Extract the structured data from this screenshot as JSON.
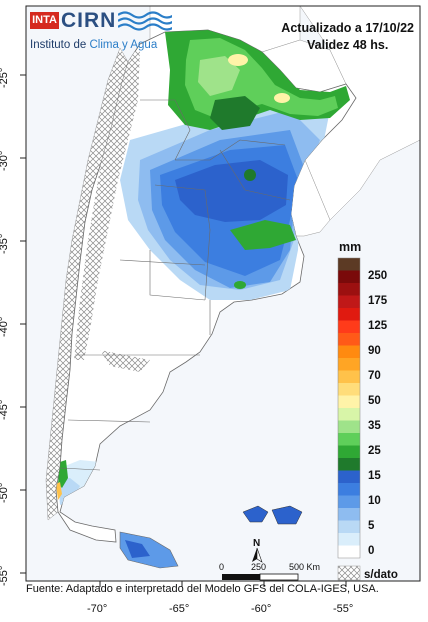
{
  "logo": {
    "inta": "INTA",
    "cirn": "CIRN",
    "institute_prefix": "Instituto de ",
    "institute_accent": "Clima y Agua"
  },
  "header": {
    "updated": "Actualizado a 17/10/22",
    "validity": "Validez 48 hs."
  },
  "legend": {
    "unit": "mm",
    "nodata_label": "s/dato",
    "classes": [
      {
        "label": "",
        "color": "#5c3a24"
      },
      {
        "label": "250",
        "color": "#7a0a0a"
      },
      {
        "label": "",
        "color": "#9c1010"
      },
      {
        "label": "175",
        "color": "#c01818"
      },
      {
        "label": "",
        "color": "#e01a10"
      },
      {
        "label": "125",
        "color": "#ff3b1a"
      },
      {
        "label": "",
        "color": "#ff5a18"
      },
      {
        "label": "90",
        "color": "#ff8a10"
      },
      {
        "label": "",
        "color": "#ffa524"
      },
      {
        "label": "70",
        "color": "#ffc24a"
      },
      {
        "label": "",
        "color": "#ffdd7a"
      },
      {
        "label": "50",
        "color": "#fff3a8"
      },
      {
        "label": "",
        "color": "#d8f5a8"
      },
      {
        "label": "35",
        "color": "#9fe38a"
      },
      {
        "label": "",
        "color": "#5fcf5a"
      },
      {
        "label": "25",
        "color": "#2fa834"
      },
      {
        "label": "",
        "color": "#1f7a2c"
      },
      {
        "label": "15",
        "color": "#2c62cc"
      },
      {
        "label": "",
        "color": "#3c7ee0"
      },
      {
        "label": "10",
        "color": "#5d9ae8"
      },
      {
        "label": "",
        "color": "#8ebcf0"
      },
      {
        "label": "5",
        "color": "#b9d9f5"
      },
      {
        "label": "",
        "color": "#daeefb"
      },
      {
        "label": "0",
        "color": "#ffffff"
      }
    ]
  },
  "axes": {
    "lon_ticks": [
      "-70°",
      "-65°",
      "-60°",
      "-55°"
    ],
    "lat_ticks": [
      "-25°",
      "-30°",
      "-35°",
      "-40°",
      "-45°",
      "-50°",
      "-55°"
    ]
  },
  "scalebar": {
    "labels": [
      "0",
      "250",
      "500 Km"
    ],
    "north": "N"
  },
  "source": "Fuente: Adaptado e interpretado del Modelo GFS del COLA-IGES, USA."
}
